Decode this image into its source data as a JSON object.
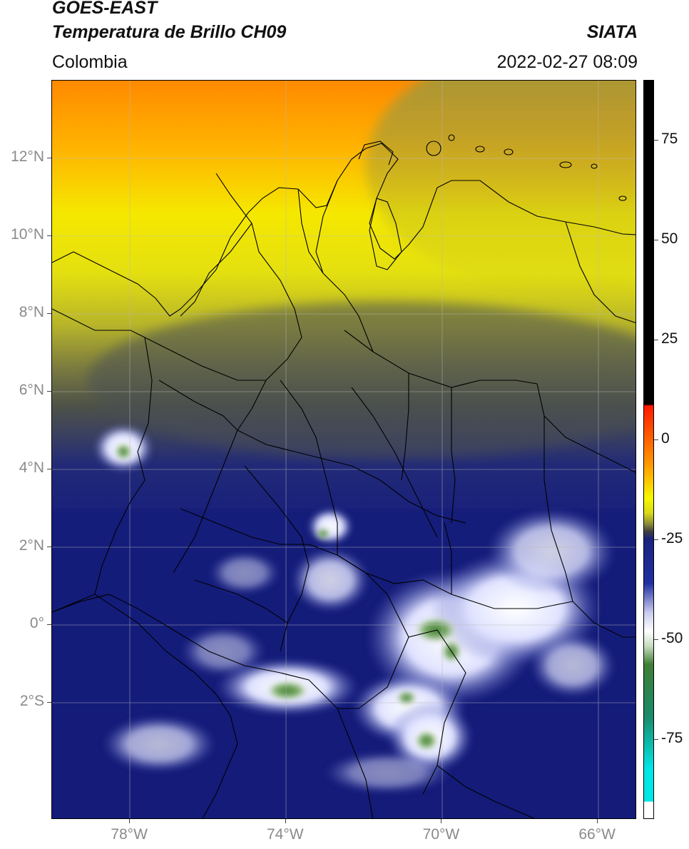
{
  "header": {
    "title_line1": "GOES-EAST",
    "title_line2": "Temperatura de Brillo CH09",
    "org": "SIATA",
    "region": "Colombia",
    "datetime": "2022-02-27 08:09"
  },
  "map": {
    "lat_labels": [
      {
        "lat": 12,
        "text": "12°N"
      },
      {
        "lat": 10,
        "text": "10°N"
      },
      {
        "lat": 8,
        "text": "8°N"
      },
      {
        "lat": 6,
        "text": "6°N"
      },
      {
        "lat": 4,
        "text": "4°N"
      },
      {
        "lat": 2,
        "text": "2°N"
      },
      {
        "lat": 0,
        "text": "0°"
      },
      {
        "lat": -2,
        "text": "2°S"
      }
    ],
    "lon_labels": [
      {
        "lon": -78,
        "text": "78°W"
      },
      {
        "lon": -74,
        "text": "74°W"
      },
      {
        "lon": -70,
        "text": "70°W"
      },
      {
        "lon": -66,
        "text": "66°W"
      }
    ],
    "extent": {
      "lon_min": -80,
      "lon_max": -65,
      "lat_min": -5,
      "lat_max": 14
    }
  },
  "colorbar": {
    "range": [
      -95,
      90
    ],
    "ticks": [
      {
        "value": 75,
        "text": "75"
      },
      {
        "value": 50,
        "text": "50"
      },
      {
        "value": 25,
        "text": "25"
      },
      {
        "value": 0,
        "text": "0"
      },
      {
        "value": -25,
        "text": "-25"
      },
      {
        "value": -50,
        "text": "-50"
      },
      {
        "value": -75,
        "text": "-75"
      }
    ]
  },
  "colors": {
    "cold_cloud_white": "#f4f4ff",
    "deep_convection_green": "#4f8a40",
    "low_temp_blue": "#141c7a",
    "mid_olive": "#8a8a38",
    "yellow": "#f2f200",
    "orange": "#ff8c00",
    "black": "#000000"
  }
}
